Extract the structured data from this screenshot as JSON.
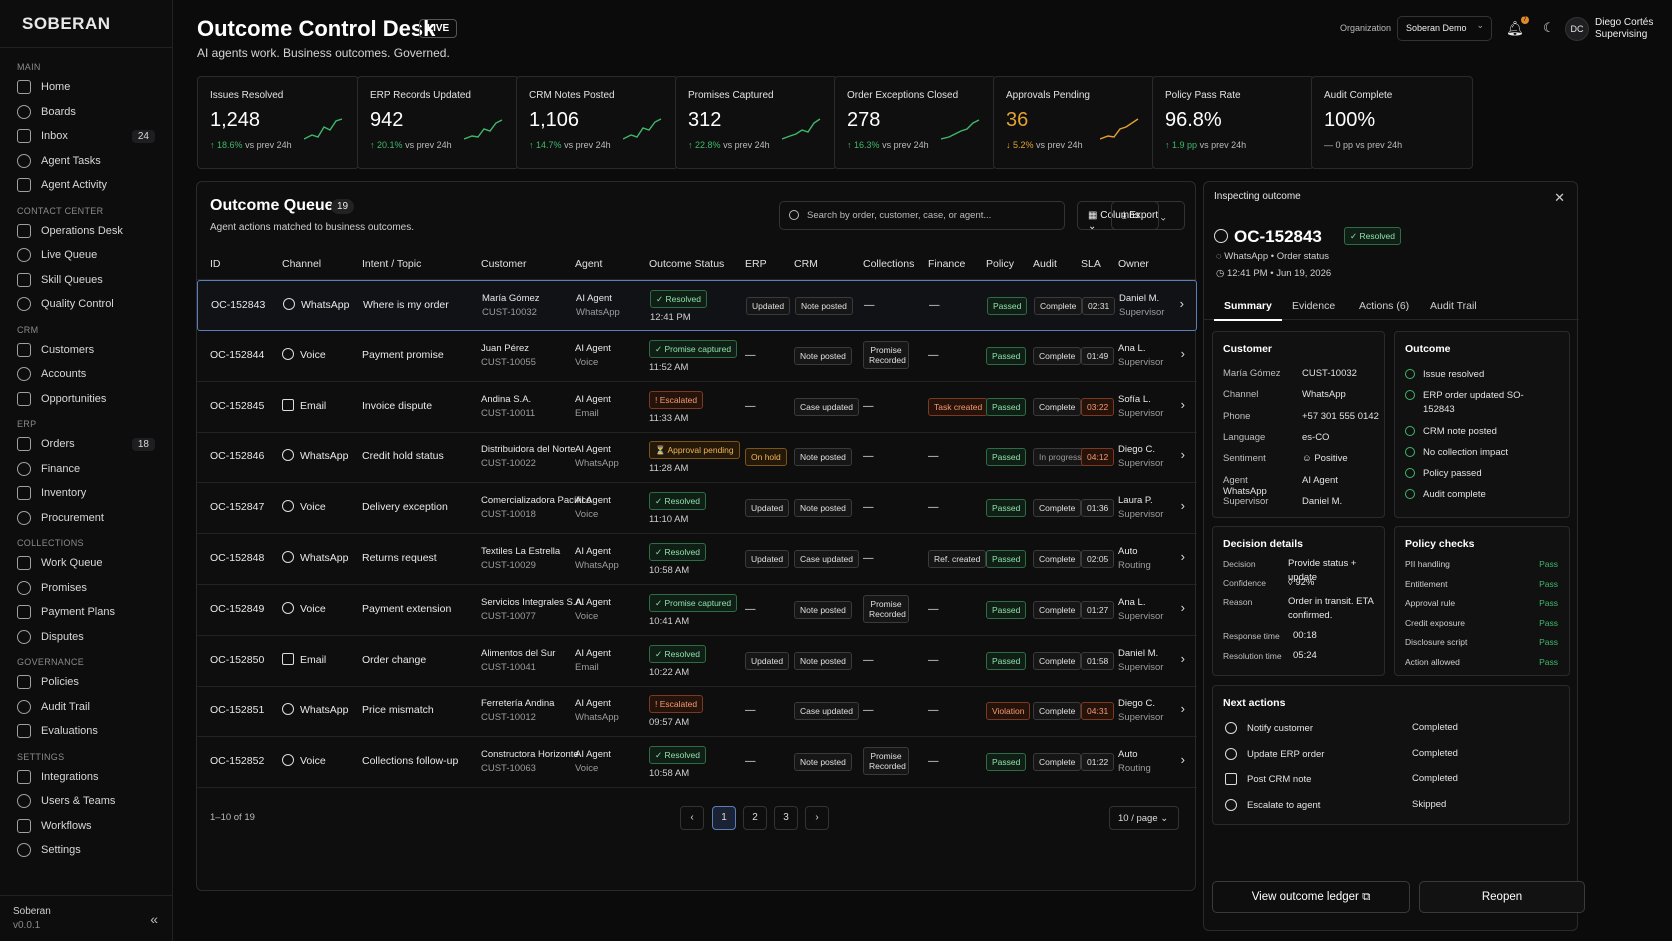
{
  "brand": "SOBERAN",
  "nav": [
    {
      "section": "MAIN",
      "items": [
        {
          "label": "Home"
        },
        {
          "label": "Boards"
        },
        {
          "label": "Inbox",
          "count": "24"
        },
        {
          "label": "Agent Tasks"
        },
        {
          "label": "Agent Activity"
        }
      ]
    },
    {
      "section": "CONTACT CENTER",
      "items": [
        {
          "label": "Operations Desk"
        },
        {
          "label": "Live Queue"
        },
        {
          "label": "Skill Queues"
        },
        {
          "label": "Quality Control"
        }
      ]
    },
    {
      "section": "CRM",
      "items": [
        {
          "label": "Customers"
        },
        {
          "label": "Accounts"
        },
        {
          "label": "Opportunities"
        }
      ]
    },
    {
      "section": "ERP",
      "items": [
        {
          "label": "Orders",
          "count": "18"
        },
        {
          "label": "Finance"
        },
        {
          "label": "Inventory"
        },
        {
          "label": "Procurement"
        }
      ]
    },
    {
      "section": "COLLECTIONS",
      "items": [
        {
          "label": "Work Queue"
        },
        {
          "label": "Promises"
        },
        {
          "label": "Payment Plans"
        },
        {
          "label": "Disputes"
        }
      ]
    },
    {
      "section": "GOVERNANCE",
      "items": [
        {
          "label": "Policies"
        },
        {
          "label": "Audit Trail"
        },
        {
          "label": "Evaluations"
        }
      ]
    },
    {
      "section": "SETTINGS",
      "items": [
        {
          "label": "Integrations"
        },
        {
          "label": "Users & Teams"
        },
        {
          "label": "Workflows"
        },
        {
          "label": "Settings"
        }
      ]
    }
  ],
  "footer": {
    "name": "Soberan",
    "version": "v0.0.1",
    "collapse": "«"
  },
  "header": {
    "title": "Outcome Control Desk",
    "live": "LIVE",
    "subtitle": "AI agents work. Business outcomes. Governed.",
    "org_label": "Organization",
    "org_value": "Soberan Demo",
    "notif_count": "7",
    "avatar": "DC",
    "user_name": "Diego Cortés",
    "user_role": "Supervising"
  },
  "kpis": [
    {
      "label": "Issues Resolved",
      "value": "1,248",
      "delta": "18.6%",
      "dir": "up",
      "suffix": "vs prev 24h"
    },
    {
      "label": "ERP Records Updated",
      "value": "942",
      "delta": "20.1%",
      "dir": "up",
      "suffix": "vs prev 24h"
    },
    {
      "label": "CRM Notes Posted",
      "value": "1,106",
      "delta": "14.7%",
      "dir": "up",
      "suffix": "vs prev 24h"
    },
    {
      "label": "Promises Captured",
      "value": "312",
      "delta": "22.8%",
      "dir": "up",
      "suffix": "vs prev 24h"
    },
    {
      "label": "Order Exceptions Closed",
      "value": "278",
      "delta": "16.3%",
      "dir": "up",
      "suffix": "vs prev 24h"
    },
    {
      "label": "Approvals Pending",
      "value": "36",
      "delta": "5.2%",
      "dir": "down",
      "suffix": "vs prev 24h",
      "warn": true
    },
    {
      "label": "Policy Pass Rate",
      "value": "96.8%",
      "delta": "1.9 pp",
      "dir": "up",
      "suffix": "vs prev 24h"
    },
    {
      "label": "Audit Complete",
      "value": "100%",
      "delta": "0 pp",
      "dir": "flat",
      "suffix": "vs prev 24h"
    }
  ],
  "queue": {
    "title": "Outcome Queue",
    "count": "19",
    "subtitle": "Agent actions matched to business outcomes.",
    "search_placeholder": "Search by order, customer, case, or agent...",
    "columns_btn": "Columns",
    "export_btn": "Export",
    "headers": [
      "ID",
      "Channel",
      "Intent / Topic",
      "Customer",
      "Agent",
      "Outcome Status",
      "ERP",
      "CRM",
      "Collections",
      "Finance",
      "Policy",
      "Audit",
      "SLA",
      "Owner"
    ],
    "rows": [
      {
        "id": "OC-152843",
        "channel": "WhatsApp",
        "intent": "Where is my order",
        "cust": "María Gómez",
        "cust_id": "CUST-10032",
        "agent": "AI Agent",
        "agent_ch": "WhatsApp",
        "status": "✓ Resolved",
        "stype": "green",
        "time": "12:41 PM",
        "erp": "Updated",
        "crm": "Note posted",
        "coll": "—",
        "fin": "—",
        "policy": "Passed",
        "audit": "Complete",
        "sla": "02:31",
        "owner": "Daniel M.",
        "owner_role": "Supervisor"
      },
      {
        "id": "OC-152844",
        "channel": "Voice",
        "intent": "Payment promise",
        "cust": "Juan Pérez",
        "cust_id": "CUST-10055",
        "agent": "AI Agent",
        "agent_ch": "Voice",
        "status": "✓ Promise captured",
        "stype": "green",
        "time": "11:52 AM",
        "erp": "—",
        "crm": "Note posted",
        "coll": "Promise Recorded",
        "fin": "—",
        "policy": "Passed",
        "audit": "Complete",
        "sla": "01:49",
        "owner": "Ana L.",
        "owner_role": "Supervisor"
      },
      {
        "id": "OC-152845",
        "channel": "Email",
        "intent": "Invoice dispute",
        "cust": "Andina S.A.",
        "cust_id": "CUST-10011",
        "agent": "AI Agent",
        "agent_ch": "Email",
        "status": "! Escalated",
        "stype": "red",
        "time": "11:33 AM",
        "erp": "—",
        "crm": "Case updated",
        "coll": "—",
        "fin": "Task created",
        "policy": "Passed",
        "audit": "Complete",
        "sla": "03:22",
        "owner": "Sofía L.",
        "owner_role": "Supervisor"
      },
      {
        "id": "OC-152846",
        "channel": "WhatsApp",
        "intent": "Credit hold status",
        "cust": "Distribuidora del Norte",
        "cust_id": "CUST-10022",
        "agent": "AI Agent",
        "agent_ch": "WhatsApp",
        "status": "⏳ Approval pending",
        "stype": "amber",
        "time": "11:28 AM",
        "erp": "On hold",
        "crm": "Note posted",
        "coll": "—",
        "fin": "—",
        "policy": "Passed",
        "audit": "In progress",
        "sla": "04:12",
        "owner": "Diego C.",
        "owner_role": "Supervisor"
      },
      {
        "id": "OC-152847",
        "channel": "Voice",
        "intent": "Delivery exception",
        "cust": "Comercializadora Pacífico",
        "cust_id": "CUST-10018",
        "agent": "AI Agent",
        "agent_ch": "Voice",
        "status": "✓ Resolved",
        "stype": "green",
        "time": "11:10 AM",
        "erp": "Updated",
        "crm": "Note posted",
        "coll": "—",
        "fin": "—",
        "policy": "Passed",
        "audit": "Complete",
        "sla": "01:36",
        "owner": "Laura P.",
        "owner_role": "Supervisor"
      },
      {
        "id": "OC-152848",
        "channel": "WhatsApp",
        "intent": "Returns request",
        "cust": "Textiles La Estrella",
        "cust_id": "CUST-10029",
        "agent": "AI Agent",
        "agent_ch": "WhatsApp",
        "status": "✓ Resolved",
        "stype": "green",
        "time": "10:58 AM",
        "erp": "Updated",
        "crm": "Case updated",
        "coll": "—",
        "fin": "Ref. created",
        "policy": "Passed",
        "audit": "Complete",
        "sla": "02:05",
        "owner": "Auto",
        "owner_role": "Routing"
      },
      {
        "id": "OC-152849",
        "channel": "Voice",
        "intent": "Payment extension",
        "cust": "Servicios Integrales S.A.",
        "cust_id": "CUST-10077",
        "agent": "AI Agent",
        "agent_ch": "Voice",
        "status": "✓ Promise captured",
        "stype": "green",
        "time": "10:41 AM",
        "erp": "—",
        "crm": "Note posted",
        "coll": "Promise Recorded",
        "fin": "—",
        "policy": "Passed",
        "audit": "Complete",
        "sla": "01:27",
        "owner": "Ana L.",
        "owner_role": "Supervisor"
      },
      {
        "id": "OC-152850",
        "channel": "Email",
        "intent": "Order change",
        "cust": "Alimentos del Sur",
        "cust_id": "CUST-10041",
        "agent": "AI Agent",
        "agent_ch": "Email",
        "status": "✓ Resolved",
        "stype": "green",
        "time": "10:22 AM",
        "erp": "Updated",
        "crm": "Note posted",
        "coll": "—",
        "fin": "—",
        "policy": "Passed",
        "audit": "Complete",
        "sla": "01:58",
        "owner": "Daniel M.",
        "owner_role": "Supervisor"
      },
      {
        "id": "OC-152851",
        "channel": "WhatsApp",
        "intent": "Price mismatch",
        "cust": "Ferretería Andina",
        "cust_id": "CUST-10012",
        "agent": "AI Agent",
        "agent_ch": "WhatsApp",
        "status": "! Escalated",
        "stype": "red",
        "time": "09:57 AM",
        "erp": "—",
        "crm": "Case updated",
        "coll": "—",
        "fin": "—",
        "policy": "Violation",
        "audit": "Complete",
        "sla": "04:31",
        "owner": "Diego C.",
        "owner_role": "Supervisor"
      },
      {
        "id": "OC-152852",
        "channel": "Voice",
        "intent": "Collections follow-up",
        "cust": "Constructora Horizonte",
        "cust_id": "CUST-10063",
        "agent": "AI Agent",
        "agent_ch": "Voice",
        "status": "✓ Resolved",
        "stype": "green",
        "time": "10:58 AM",
        "erp": "—",
        "crm": "Note posted",
        "coll": "Promise Recorded",
        "fin": "—",
        "policy": "Passed",
        "audit": "Complete",
        "sla": "01:22",
        "owner": "Auto",
        "owner_role": "Routing"
      }
    ],
    "range": "1–10 of 19",
    "pages": [
      "‹",
      "1",
      "2",
      "3",
      "›"
    ],
    "per_page": "10 / page"
  },
  "inspector": {
    "header": "Inspecting outcome",
    "close": "✕",
    "id": "OC-152843",
    "status": "✓ Resolved",
    "meta1": "WhatsApp  •  Order status",
    "meta2": "12:41 PM  •  Jun 19, 2026",
    "tabs": [
      "Summary",
      "Evidence",
      "Actions (6)",
      "Audit Trail"
    ],
    "customer": {
      "title": "Customer",
      "rows": [
        [
          "María Gómez",
          "CUST-10032"
        ],
        [
          "Channel",
          "WhatsApp"
        ],
        [
          "Phone",
          "+57 301 555 0142"
        ],
        [
          "Language",
          "es-CO"
        ],
        [
          "Sentiment",
          "☺ Positive"
        ],
        [
          "Agent",
          "AI Agent WhatsApp"
        ],
        [
          "Supervisor",
          "Daniel M."
        ]
      ]
    },
    "outcome": {
      "title": "Outcome",
      "items": [
        "Issue resolved",
        "ERP order updated SO-152843",
        "CRM note posted",
        "No collection impact",
        "Policy passed",
        "Audit complete"
      ]
    },
    "decision": {
      "title": "Decision details",
      "rows": [
        [
          "Decision",
          "Provide status + update"
        ],
        [
          "Confidence",
          "◊ 92%"
        ],
        [
          "Reason",
          "Order in transit. ETA confirmed."
        ],
        [
          "Response time",
          "00:18"
        ],
        [
          "Resolution time",
          "05:24"
        ]
      ]
    },
    "policy": {
      "title": "Policy checks",
      "rows": [
        [
          "PII handling",
          "Pass"
        ],
        [
          "Entitlement",
          "Pass"
        ],
        [
          "Approval rule",
          "Pass"
        ],
        [
          "Credit exposure",
          "Pass"
        ],
        [
          "Disclosure script",
          "Pass"
        ],
        [
          "Action allowed",
          "Pass"
        ]
      ]
    },
    "next": {
      "title": "Next actions",
      "rows": [
        [
          "Notify customer",
          "Completed"
        ],
        [
          "Update ERP order",
          "Completed"
        ],
        [
          "Post CRM note",
          "Completed"
        ],
        [
          "Escalate to agent",
          "Skipped"
        ]
      ]
    },
    "ledger_btn": "View outcome ledger  ⧉",
    "reopen_btn": "Reopen"
  }
}
